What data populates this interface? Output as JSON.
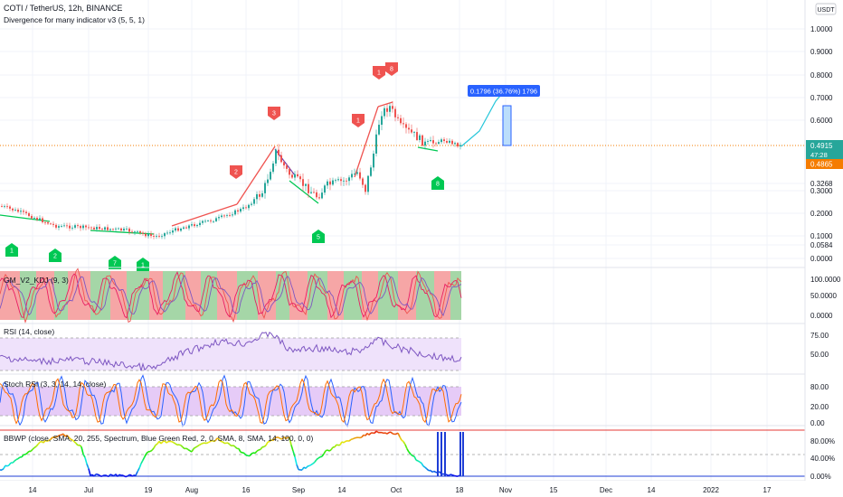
{
  "header": {
    "title": "COTI / TetherUS, 12h, BINANCE",
    "indicator": "Divergence for many indicator v3 (5, 5, 1)",
    "currency": "USDT"
  },
  "price_axis": [
    "1.0000",
    "0.9000",
    "0.8000",
    "0.7000",
    "0.6000",
    "0.3268",
    "0.3000",
    "0.2000",
    "0.1000",
    "0.0584",
    "0.0000"
  ],
  "price_tags": {
    "last": "0.4915",
    "countdown": "47:28",
    "close": "0.4865"
  },
  "projection_label": "0.1796 (36.76%) 1796",
  "markers": {
    "red": [
      "2",
      "3",
      "1",
      "1",
      "8"
    ],
    "green": [
      "1",
      "2",
      "7",
      "1",
      "5",
      "8"
    ]
  },
  "panes": {
    "kdj": {
      "title": "GM_V2_KDJ (9, 3)",
      "axis": [
        "100.0000",
        "50.0000",
        "0.0000"
      ]
    },
    "rsi": {
      "title": "RSI (14, close)",
      "axis": [
        "75.00",
        "50.00"
      ]
    },
    "stoch": {
      "title": "Stoch RSI (3, 3, 14, 14, close)",
      "axis": [
        "80.00",
        "20.00",
        "0.00"
      ]
    },
    "bbwp": {
      "title": "BBWP (close, SMA, 20, 255, Spectrum, Blue Green Red, 2, 0, SMA, 8, SMA, 14, 100, 0, 0)",
      "axis": [
        "80.00%",
        "40.00%",
        "0.00%"
      ]
    }
  },
  "time_axis": [
    "14",
    "Jul",
    "19",
    "Aug",
    "16",
    "Sep",
    "14",
    "Oct",
    "18",
    "Nov",
    "15",
    "Dec",
    "14",
    "2022",
    "17"
  ],
  "colors": {
    "up": "#26a69a",
    "down": "#ef5350",
    "price_line": "#f57c00",
    "last_tag": "#26a69a",
    "projection": "#2962ff",
    "kdj_red_zone": "#f6a6a6",
    "kdj_green_zone": "#a5d6a7",
    "rsi_band": "#efe2fb",
    "stoch_band": "#e6cbf7"
  }
}
